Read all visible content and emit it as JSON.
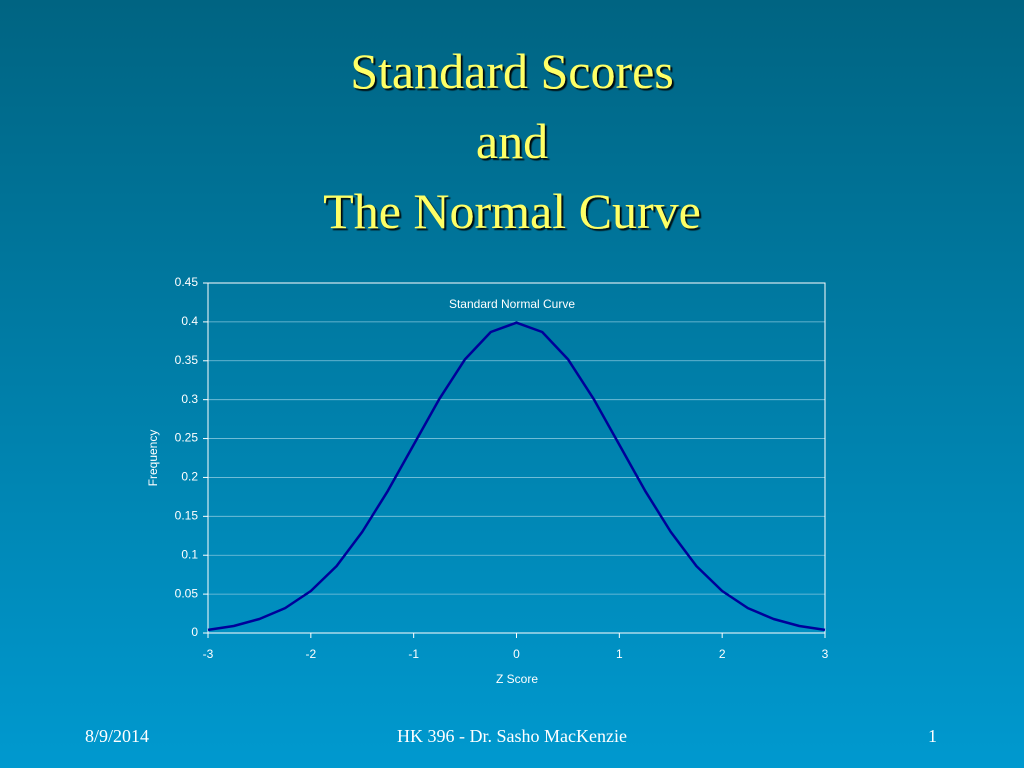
{
  "slide": {
    "title_lines": [
      "Standard Scores",
      "and",
      "The Normal Curve"
    ],
    "footer": {
      "date": "8/9/2014",
      "center": "HK 396 - Dr. Sasho MacKenzie",
      "page": "1"
    }
  },
  "chart_data": {
    "type": "line",
    "title": "Standard Normal Curve",
    "x_label": "Z Score",
    "y_label": "Frequency",
    "x": [
      -3,
      -2.75,
      -2.5,
      -2.25,
      -2,
      -1.75,
      -1.5,
      -1.25,
      -1,
      -0.75,
      -0.5,
      -0.25,
      0,
      0.25,
      0.5,
      0.75,
      1,
      1.25,
      1.5,
      1.75,
      2,
      2.25,
      2.5,
      2.75,
      3
    ],
    "values": [
      0.004,
      0.009,
      0.018,
      0.032,
      0.054,
      0.086,
      0.13,
      0.183,
      0.242,
      0.301,
      0.352,
      0.387,
      0.399,
      0.387,
      0.352,
      0.301,
      0.242,
      0.183,
      0.13,
      0.086,
      0.054,
      0.032,
      0.018,
      0.009,
      0.004
    ],
    "color": "#000099",
    "xlim": [
      -3,
      3
    ],
    "xticks": [
      -3,
      -2,
      -1,
      0,
      1,
      2,
      3
    ],
    "ylim": [
      0,
      0.45
    ],
    "yticks": [
      0,
      0.05,
      0.1,
      0.15,
      0.2,
      0.25,
      0.3,
      0.35,
      0.4,
      0.45
    ],
    "grid": true
  }
}
